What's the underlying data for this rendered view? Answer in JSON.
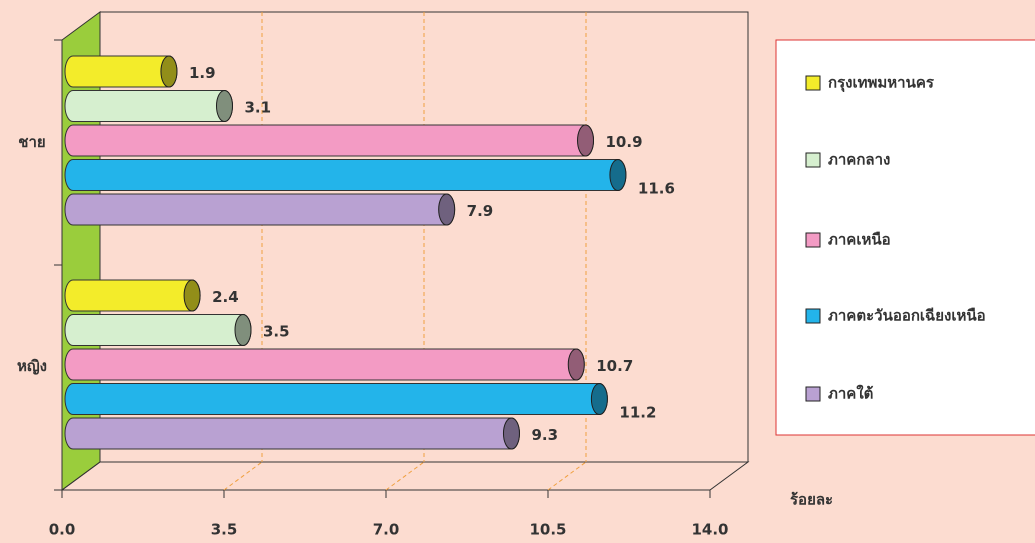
{
  "chart_data": {
    "type": "bar",
    "orientation": "horizontal",
    "style": "3d-cylinder",
    "x_label": "ร้อยละ",
    "categories": [
      "ชาย",
      "หญิง"
    ],
    "series": [
      {
        "name": "กรุงเทพมหานคร",
        "color": "#f3ec2a",
        "values": [
          1.9,
          2.4
        ]
      },
      {
        "name": "ภาคกลาง",
        "color": "#d6efcf",
        "values": [
          3.1,
          3.5
        ]
      },
      {
        "name": "ภาคเหนือ",
        "color": "#f39bc4",
        "values": [
          10.9,
          10.7
        ]
      },
      {
        "name": "ภาคตะวันออกเฉียงเหนือ",
        "color": "#23b4ea",
        "values": [
          11.6,
          11.2
        ]
      },
      {
        "name": "ภาคใต้",
        "color": "#b9a1d2",
        "values": [
          7.9,
          9.3
        ]
      }
    ],
    "xlim": [
      0,
      14
    ],
    "xticks": [
      {
        "value": 0,
        "label": "0.0"
      },
      3.5,
      {
        "value": 7,
        "label": "7.0"
      },
      10.5,
      {
        "value": 14,
        "label": "14.0"
      }
    ],
    "grid": true,
    "legend": "right"
  }
}
